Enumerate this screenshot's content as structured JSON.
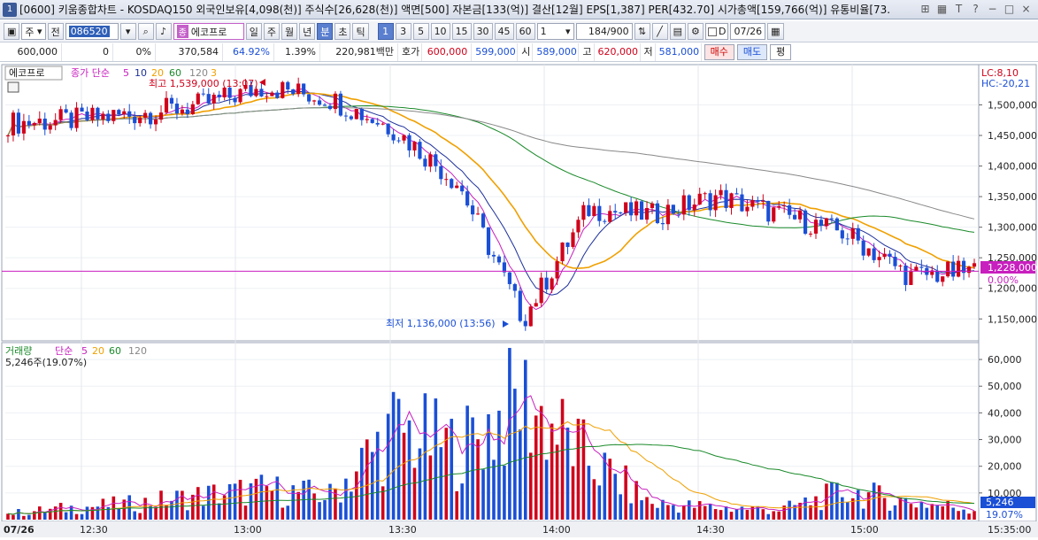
{
  "window": {
    "number": "1",
    "title": "[0600] 키움종합차트 - KOSDAQ150 외국인보유[4,098(천)] 주식수[26,628(천)] 액면[500] 자본금[133(억)] 결산[12월] EPS[1,387] PER[432.70] 시가총액[159,766(억)] 유통비율[73."
  },
  "toolbar": {
    "type_select": "주",
    "prefix": "전",
    "code": "086520",
    "market": "에코프로",
    "market_badge": "종",
    "periods": [
      "일",
      "주",
      "월",
      "년",
      "분",
      "초",
      "틱"
    ],
    "active_period": "분",
    "intervals": [
      "1",
      "3",
      "5",
      "10",
      "15",
      "30",
      "45",
      "60"
    ],
    "active_interval": "1",
    "interval_value": "1",
    "count": "184",
    "count_total": "/900",
    "date_checkbox_label": "D",
    "date": "07/26"
  },
  "quote": {
    "price": "600,000",
    "change": "0",
    "change_rate": "0%",
    "volume": "370,584",
    "volume_ratio": "64.92%",
    "turnover": "1.39%",
    "amount": "220,981백만",
    "ask_label": "호가",
    "ask_price": "600,000",
    "bid_price": "599,000",
    "open_label": "시",
    "open": "589,000",
    "high_label": "고",
    "high": "620,000",
    "low_label": "저",
    "low": "581,000",
    "buy_label": "매수",
    "sell_label": "매도",
    "avg_label": "평"
  },
  "price_panel": {
    "legend_name": "에코프로",
    "legend_series": "종가 단순",
    "ma_periods": [
      "5",
      "10",
      "20",
      "60",
      "120",
      "3"
    ],
    "lc_label": "LC:8,10",
    "hc_label": "HC:-20,21",
    "high_annotation": "최고 1,539,000 (13:07)",
    "low_annotation": "최저 1,136,000 (13:56)",
    "current_price_tag": "1,228,000",
    "current_change_tag": "0.00%",
    "y_ticks": [
      "1,500,000",
      "1,450,000",
      "1,400,000",
      "1,350,000",
      "1,300,000",
      "1,250,000",
      "1,200,000",
      "1,150,000"
    ]
  },
  "volume_panel": {
    "legend_name": "거래량",
    "legend_series": "단순",
    "ma_periods": [
      "5",
      "20",
      "60",
      "120"
    ],
    "current_volume": "5,246주(19.07%)",
    "volume_tag": "5,246",
    "ratio_tag": "19.07%",
    "y_ticks": [
      "60,000",
      "50,000",
      "40,000",
      "30,000",
      "20,000",
      "10,000"
    ]
  },
  "x_axis": {
    "ticks": [
      "07/26",
      "12:30",
      "13:00",
      "13:30",
      "14:00",
      "14:30",
      "15:00",
      "15:35:00"
    ]
  },
  "colors": {
    "up": "#d0021b",
    "down": "#1a4fd6",
    "ma5": "#c81fbf",
    "ma10": "#1c2f9c",
    "ma20": "#f0a000",
    "ma60": "#1a8a2a",
    "ma120": "#888888",
    "price_line": "#c81fbf"
  },
  "chart_data": {
    "type": "line",
    "title": "에코프로",
    "x": [
      "12:14",
      "12:30",
      "12:45",
      "13:00",
      "13:07",
      "13:15",
      "13:30",
      "13:45",
      "13:56",
      "14:00",
      "14:15",
      "14:30",
      "14:45",
      "15:00",
      "15:10",
      "15:20"
    ],
    "series": [
      {
        "name": "종가",
        "values": [
          1470000,
          1475000,
          1485000,
          1500000,
          1530000,
          1510000,
          1460000,
          1370000,
          1150000,
          1330000,
          1320000,
          1350000,
          1320000,
          1290000,
          1220000,
          1228000
        ]
      },
      {
        "name": "거래량",
        "values": [
          3000,
          6000,
          8000,
          12000,
          15000,
          12000,
          45000,
          35000,
          60000,
          30000,
          8000,
          6000,
          5000,
          14000,
          9000,
          5246
        ]
      }
    ],
    "ylim": [
      1120000,
      1560000
    ],
    "volume_ylim": [
      0,
      65000
    ]
  }
}
